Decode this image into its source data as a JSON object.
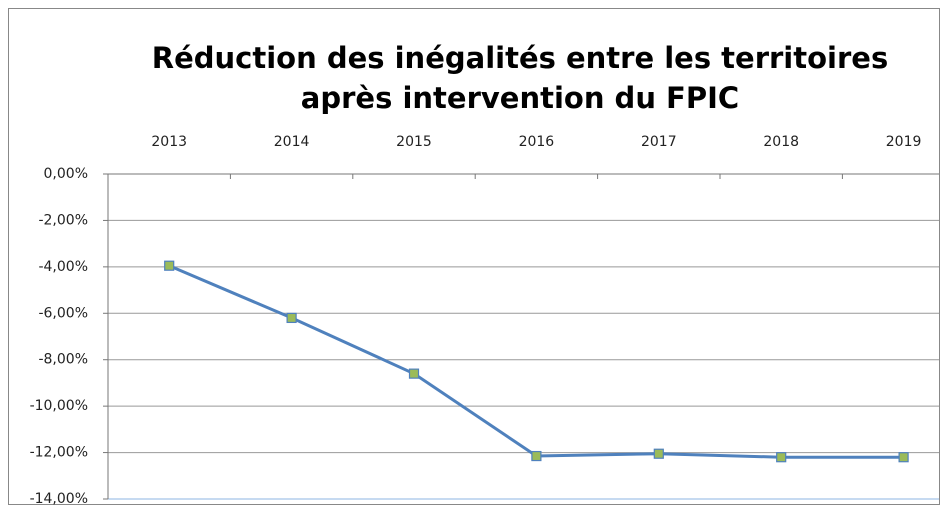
{
  "chart_data": {
    "type": "line",
    "title_lines": [
      "Réduction des inégalités entre les territoires",
      "après intervention du FPIC"
    ],
    "categories": [
      "2013",
      "2014",
      "2015",
      "2016",
      "2017",
      "2018",
      "2019"
    ],
    "series": [
      {
        "name": "FPIC",
        "color": "#4f81bd",
        "marker_color": "#9bbb59",
        "values": [
          -3.95,
          -6.2,
          -8.6,
          -12.15,
          -12.05,
          -12.2,
          -12.2
        ]
      }
    ],
    "ylim": [
      -14,
      0
    ],
    "yticks": [
      {
        "value": 0,
        "label": "0,00%"
      },
      {
        "value": -2,
        "label": "-2,00%"
      },
      {
        "value": -4,
        "label": "-4,00%"
      },
      {
        "value": -6,
        "label": "-6,00%"
      },
      {
        "value": -8,
        "label": "-8,00%"
      },
      {
        "value": -10,
        "label": "-10,00%"
      },
      {
        "value": -12,
        "label": "-12,00%"
      },
      {
        "value": -14,
        "label": "-14,00%"
      }
    ],
    "grid": true,
    "legend": false
  }
}
